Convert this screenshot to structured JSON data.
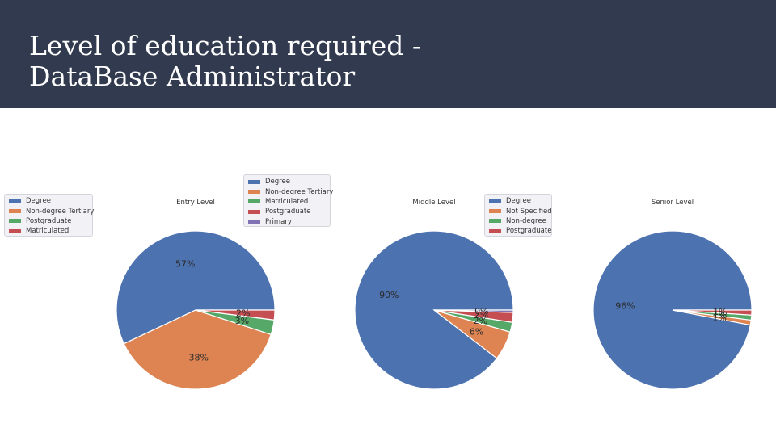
{
  "slide": {
    "title_line1": "Level of education required -",
    "title_line2": "DataBase Administrator"
  },
  "chart_data": [
    {
      "type": "pie",
      "title": "Entry Level",
      "labels": [
        "Degree",
        "Non-degree Tertiary",
        "Postgraduate",
        "Matriculated"
      ],
      "values": [
        57,
        38,
        3,
        2
      ],
      "percent_labels": [
        "57%",
        "38%",
        "3%",
        "2%"
      ],
      "colors": [
        "#4c72b0",
        "#dd8452",
        "#55a868",
        "#c44e52"
      ],
      "legend": {
        "placement": "left",
        "entries": [
          "Degree",
          "Non-degree Tertiary",
          "Postgraduate",
          "Matriculated"
        ],
        "colors": [
          "#4c72b0",
          "#dd8452",
          "#55a868",
          "#c44e52"
        ]
      }
    },
    {
      "type": "pie",
      "title": "Middle Level",
      "labels": [
        "Degree",
        "Non-degree Tertiary",
        "Matriculated",
        "Postgraduate",
        "Primary"
      ],
      "values": [
        90,
        6,
        2,
        2,
        0.5
      ],
      "percent_labels": [
        "90%",
        "6%",
        "2%",
        "2%",
        "0%"
      ],
      "colors": [
        "#4c72b0",
        "#dd8452",
        "#55a868",
        "#c44e52",
        "#8172b3"
      ],
      "legend": {
        "placement": "top-left",
        "entries": [
          "Degree",
          "Non-degree Tertiary",
          "Matriculated",
          "Postgraduate",
          "Primary"
        ],
        "colors": [
          "#4c72b0",
          "#dd8452",
          "#55a868",
          "#c44e52",
          "#8172b3"
        ]
      }
    },
    {
      "type": "pie",
      "title": "Senior Level",
      "labels": [
        "Degree",
        "Not Specified",
        "Non-degree",
        "Postgraduate"
      ],
      "values": [
        96,
        1,
        1,
        1
      ],
      "percent_labels": [
        "96%",
        "1%",
        "1%",
        "1%"
      ],
      "colors": [
        "#4c72b0",
        "#dd8452",
        "#55a868",
        "#c44e52"
      ],
      "legend": {
        "placement": "top-left",
        "entries": [
          "Degree",
          "Not Specified",
          "Non-degree",
          "Postgraduate"
        ],
        "colors": [
          "#4c72b0",
          "#dd8452",
          "#55a868",
          "#c44e52"
        ]
      }
    }
  ]
}
